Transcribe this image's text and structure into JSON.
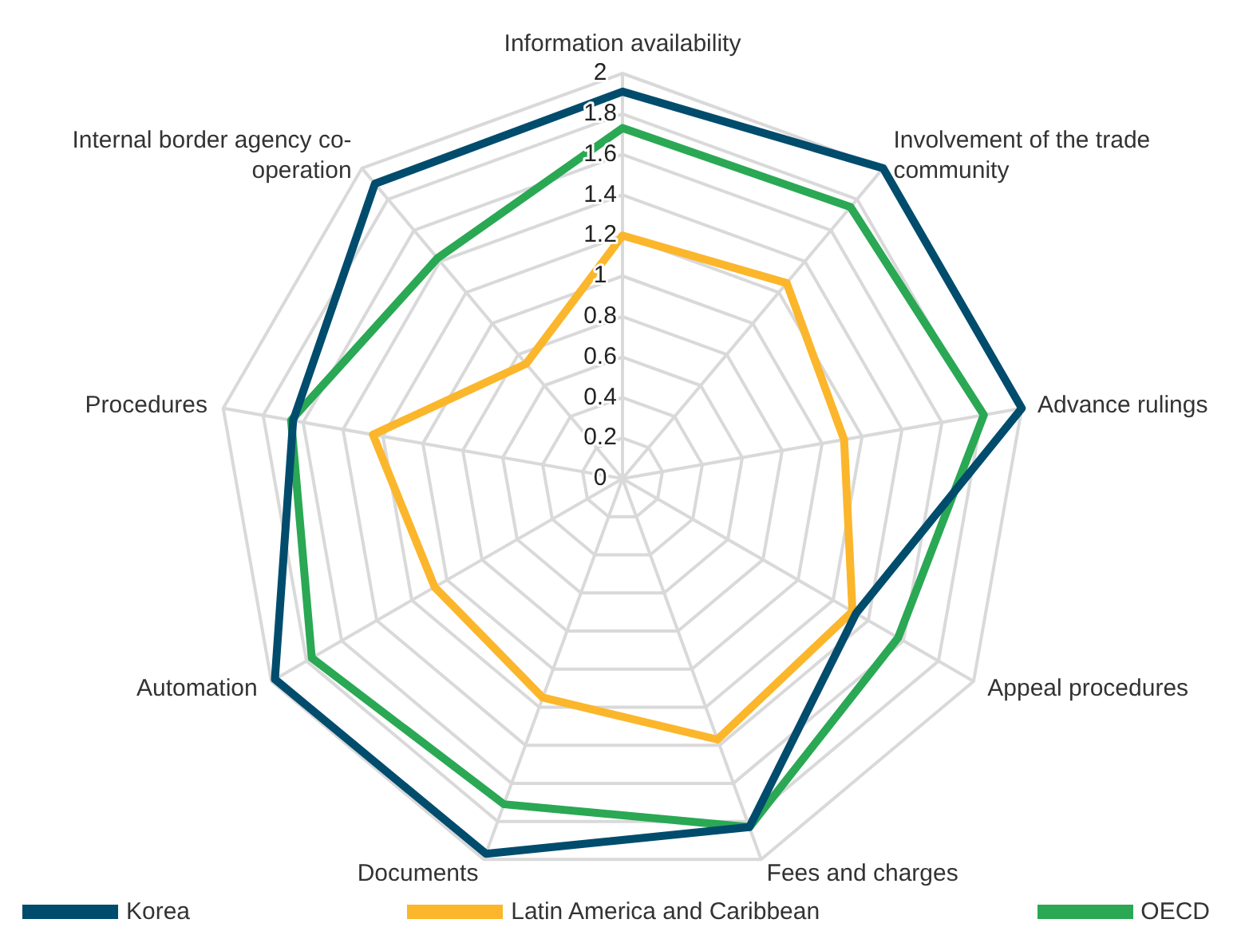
{
  "chart_data": {
    "type": "radar",
    "categories": [
      "Information availability",
      "Involvement of the trade community",
      "Advance rulings",
      "Appeal procedures",
      "Fees and charges",
      "Documents",
      "Automation",
      "Procedures",
      "Internal border agency co-operation"
    ],
    "series": [
      {
        "name": "Korea",
        "color": "#004c6d",
        "values": [
          1.91,
          2.0,
          2.0,
          1.33,
          1.83,
          1.97,
          1.98,
          1.65,
          1.9
        ]
      },
      {
        "name": "Latin America and Caribbean",
        "color": "#fbb62b",
        "values": [
          1.2,
          1.26,
          1.11,
          1.31,
          1.37,
          1.15,
          1.07,
          1.25,
          0.74
        ]
      },
      {
        "name": "OECD",
        "color": "#2aa854",
        "values": [
          1.73,
          1.75,
          1.81,
          1.57,
          1.83,
          1.71,
          1.77,
          1.66,
          1.42
        ]
      }
    ],
    "ylim": [
      0,
      2
    ],
    "yticks": [
      0,
      0.2,
      0.4,
      0.6,
      0.8,
      1,
      1.2,
      1.4,
      1.6,
      1.8,
      2
    ],
    "grid": true,
    "legend": "bottom",
    "marker": "none",
    "line_style": "solid"
  }
}
